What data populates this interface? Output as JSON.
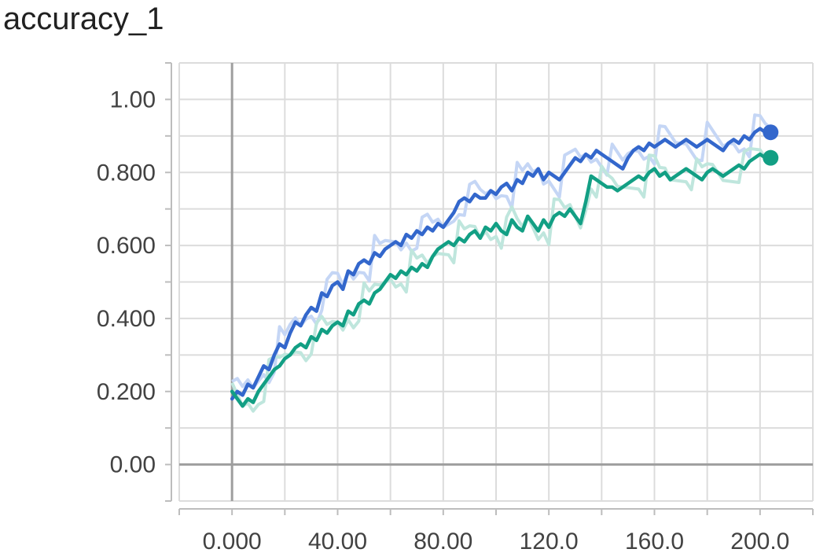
{
  "title": "accuracy_1",
  "chart_data": {
    "type": "line",
    "title": "accuracy_1",
    "xlabel": "",
    "ylabel": "",
    "xlim": [
      -20,
      220
    ],
    "ylim": [
      -0.1,
      1.1
    ],
    "grid": true,
    "x_ticks": [
      0,
      40,
      80,
      120,
      160,
      200
    ],
    "x_tick_labels": [
      "0.000",
      "40.00",
      "80.00",
      "120.0",
      "160.0",
      "200.0"
    ],
    "y_ticks": [
      0,
      0.2,
      0.4,
      0.6,
      0.8,
      1.0
    ],
    "y_tick_labels": [
      "0.00",
      "0.200",
      "0.400",
      "0.600",
      "0.800",
      "1.00"
    ],
    "series": [
      {
        "color": "#3367cc",
        "raw_color": "#c5d6f5",
        "x": [
          0,
          2,
          4,
          6,
          8,
          10,
          12,
          14,
          16,
          18,
          20,
          22,
          24,
          26,
          28,
          30,
          32,
          34,
          36,
          38,
          40,
          42,
          44,
          46,
          48,
          50,
          52,
          54,
          56,
          58,
          60,
          62,
          64,
          66,
          68,
          70,
          72,
          74,
          76,
          78,
          80,
          82,
          84,
          86,
          88,
          90,
          92,
          94,
          96,
          98,
          100,
          102,
          104,
          106,
          108,
          110,
          112,
          114,
          116,
          118,
          120,
          122,
          124,
          126,
          128,
          130,
          132,
          134,
          136,
          138,
          140,
          142,
          144,
          146,
          148,
          150,
          152,
          154,
          156,
          158,
          160,
          162,
          164,
          166,
          168,
          170,
          172,
          174,
          176,
          178,
          180,
          182,
          184,
          186,
          188,
          190,
          192,
          194,
          196,
          198,
          200,
          202,
          204
        ],
        "values": [
          0.18,
          0.2,
          0.19,
          0.22,
          0.21,
          0.24,
          0.27,
          0.26,
          0.3,
          0.33,
          0.32,
          0.36,
          0.39,
          0.38,
          0.41,
          0.43,
          0.42,
          0.47,
          0.46,
          0.49,
          0.5,
          0.48,
          0.53,
          0.52,
          0.55,
          0.56,
          0.55,
          0.58,
          0.57,
          0.59,
          0.6,
          0.61,
          0.6,
          0.63,
          0.62,
          0.64,
          0.63,
          0.65,
          0.64,
          0.66,
          0.65,
          0.67,
          0.69,
          0.72,
          0.73,
          0.72,
          0.74,
          0.73,
          0.73,
          0.75,
          0.74,
          0.76,
          0.77,
          0.75,
          0.78,
          0.77,
          0.8,
          0.79,
          0.81,
          0.78,
          0.8,
          0.79,
          0.78,
          0.8,
          0.82,
          0.84,
          0.83,
          0.85,
          0.84,
          0.86,
          0.85,
          0.84,
          0.83,
          0.82,
          0.81,
          0.84,
          0.86,
          0.87,
          0.86,
          0.88,
          0.87,
          0.88,
          0.89,
          0.88,
          0.87,
          0.88,
          0.89,
          0.88,
          0.87,
          0.88,
          0.89,
          0.88,
          0.87,
          0.86,
          0.88,
          0.89,
          0.88,
          0.9,
          0.89,
          0.91,
          0.92,
          0.91,
          0.91
        ]
      },
      {
        "color": "#129f84",
        "raw_color": "#bfe6dd",
        "x": [
          0,
          2,
          4,
          6,
          8,
          10,
          12,
          14,
          16,
          18,
          20,
          22,
          24,
          26,
          28,
          30,
          32,
          34,
          36,
          38,
          40,
          42,
          44,
          46,
          48,
          50,
          52,
          54,
          56,
          58,
          60,
          62,
          64,
          66,
          68,
          70,
          72,
          74,
          76,
          78,
          80,
          82,
          84,
          86,
          88,
          90,
          92,
          94,
          96,
          98,
          100,
          102,
          104,
          106,
          108,
          110,
          112,
          114,
          116,
          118,
          120,
          122,
          124,
          126,
          128,
          130,
          132,
          134,
          136,
          138,
          140,
          142,
          144,
          146,
          148,
          150,
          152,
          154,
          156,
          158,
          160,
          162,
          164,
          166,
          168,
          170,
          172,
          174,
          176,
          178,
          180,
          182,
          184,
          186,
          188,
          190,
          192,
          194,
          196,
          198,
          200,
          202,
          204
        ],
        "values": [
          0.2,
          0.18,
          0.16,
          0.18,
          0.17,
          0.2,
          0.22,
          0.24,
          0.26,
          0.27,
          0.29,
          0.3,
          0.32,
          0.33,
          0.32,
          0.35,
          0.34,
          0.37,
          0.36,
          0.38,
          0.39,
          0.38,
          0.42,
          0.41,
          0.44,
          0.45,
          0.44,
          0.47,
          0.48,
          0.5,
          0.52,
          0.51,
          0.53,
          0.52,
          0.54,
          0.53,
          0.55,
          0.54,
          0.57,
          0.59,
          0.6,
          0.61,
          0.6,
          0.62,
          0.61,
          0.63,
          0.64,
          0.62,
          0.65,
          0.64,
          0.66,
          0.64,
          0.63,
          0.67,
          0.65,
          0.64,
          0.68,
          0.66,
          0.64,
          0.67,
          0.65,
          0.68,
          0.69,
          0.68,
          0.7,
          0.68,
          0.66,
          0.72,
          0.79,
          0.78,
          0.77,
          0.76,
          0.76,
          0.75,
          0.76,
          0.77,
          0.78,
          0.79,
          0.78,
          0.8,
          0.81,
          0.79,
          0.8,
          0.78,
          0.79,
          0.8,
          0.81,
          0.8,
          0.79,
          0.78,
          0.8,
          0.81,
          0.8,
          0.79,
          0.8,
          0.81,
          0.82,
          0.81,
          0.83,
          0.84,
          0.85,
          0.84,
          0.84
        ]
      }
    ]
  }
}
